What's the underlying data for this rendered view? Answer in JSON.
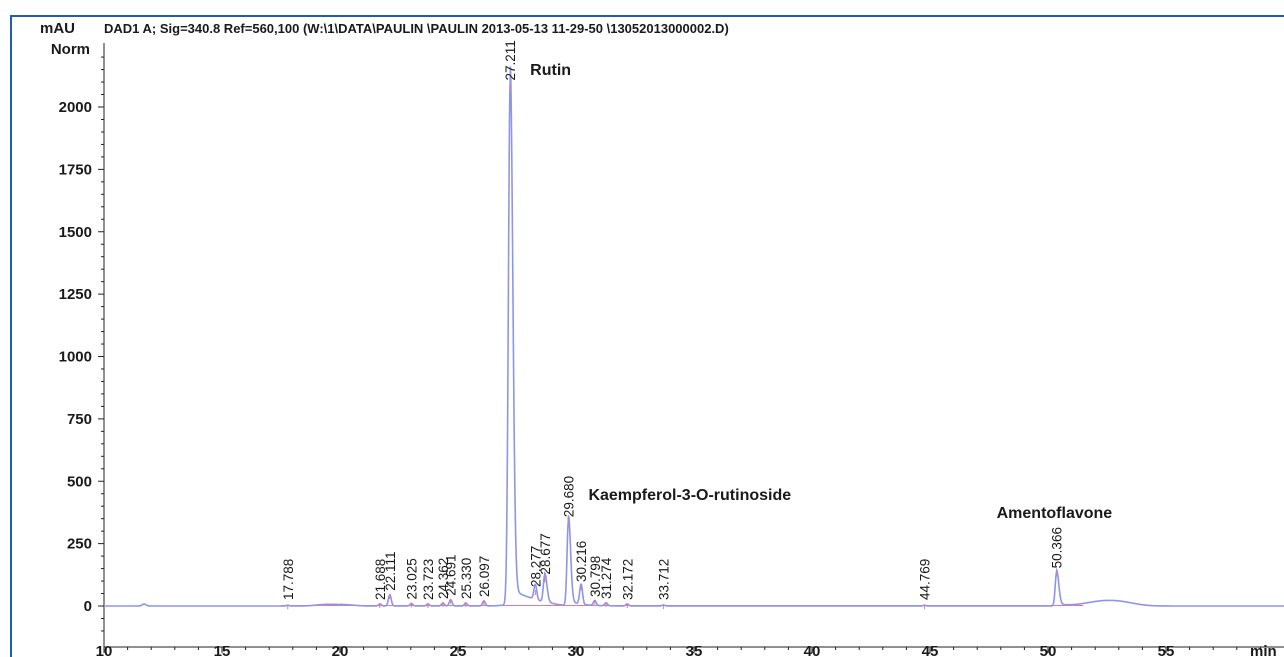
{
  "chart_data": {
    "type": "line",
    "title": "DAD1 A; Sig=340.8 Ref=560,100 (W:\\1\\DATA\\PAULIN \\PAULIN 2013-05-13 11-29-50 \\13052013000002.D)",
    "y_unit": "mAU",
    "y_norm_label": "Norm",
    "x_unit": "min",
    "xlim": [
      10,
      60
    ],
    "ylim": [
      -110,
      2370
    ],
    "x_ticks": [
      10,
      15,
      20,
      25,
      30,
      35,
      40,
      45,
      50,
      55
    ],
    "y_ticks": [
      0,
      250,
      500,
      750,
      1000,
      1250,
      1500,
      1750,
      2000
    ],
    "grid": false,
    "colors": {
      "trace": "#8f95e6",
      "baseline": "#e07aa5",
      "frame": "#1f5fa8",
      "text": "#1a1a1a"
    },
    "peaks": [
      {
        "rt": 17.788,
        "label": "17.788",
        "height": 3
      },
      {
        "rt": 21.688,
        "label": "21.688",
        "height": 8
      },
      {
        "rt": 22.111,
        "label": "22.111",
        "height": 45
      },
      {
        "rt": 23.025,
        "label": "23.025",
        "height": 10
      },
      {
        "rt": 23.723,
        "label": "23.723",
        "height": 8
      },
      {
        "rt": 24.362,
        "label": "24.362",
        "height": 12
      },
      {
        "rt": 24.691,
        "label": "24.691",
        "height": 25
      },
      {
        "rt": 25.33,
        "label": "25.330",
        "height": 12
      },
      {
        "rt": 26.097,
        "label": "26.097",
        "height": 20
      },
      {
        "rt": 27.211,
        "label": "27.211",
        "height": 2090
      },
      {
        "rt": 28.277,
        "label": "28.277",
        "height": 60
      },
      {
        "rt": 28.677,
        "label": "28.677",
        "height": 110
      },
      {
        "rt": 29.68,
        "label": "29.680",
        "height": 340
      },
      {
        "rt": 30.216,
        "label": "30.216",
        "height": 80
      },
      {
        "rt": 30.798,
        "label": "30.798",
        "height": 20
      },
      {
        "rt": 31.274,
        "label": "31.274",
        "height": 12
      },
      {
        "rt": 32.172,
        "label": "32.172",
        "height": 8
      },
      {
        "rt": 33.712,
        "label": "33.712",
        "height": 4
      },
      {
        "rt": 44.769,
        "label": "44.769",
        "height": 3
      },
      {
        "rt": 50.366,
        "label": "50.366",
        "height": 135
      }
    ],
    "annotations": [
      {
        "text": "Rutin",
        "near_rt": 27.211
      },
      {
        "text": "Kaempferol-3-O-rutinoside",
        "near_rt": 29.68
      },
      {
        "text": "Amentoflavone",
        "near_rt": 50.366
      }
    ]
  }
}
